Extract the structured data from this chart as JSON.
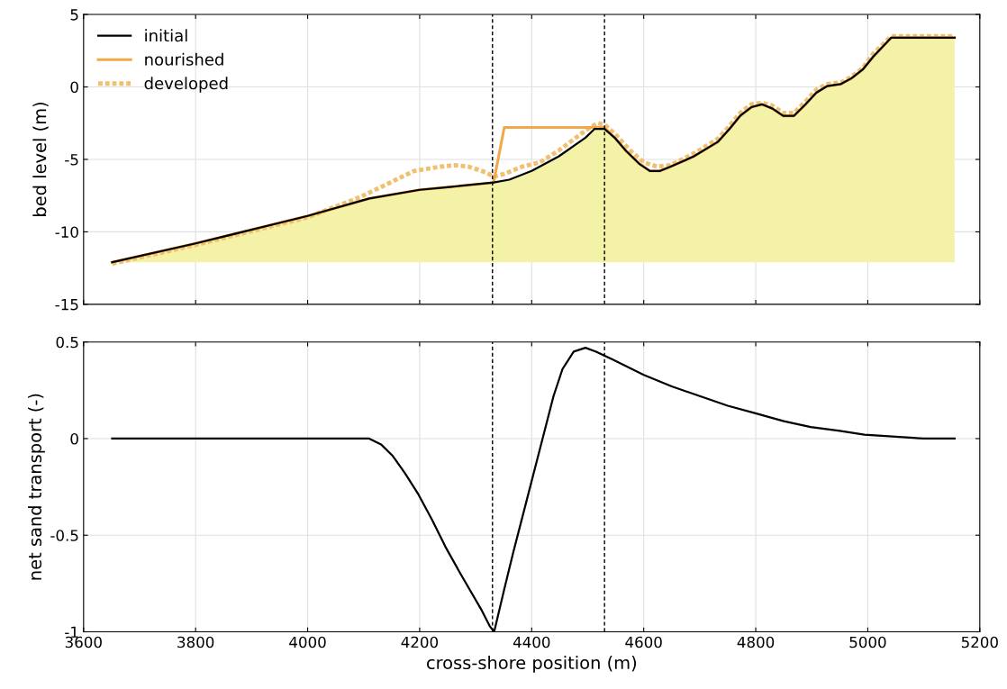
{
  "chart_data": [
    {
      "type": "line",
      "ylabel": "bed level (m)",
      "xlim": [
        3600,
        5200
      ],
      "xticks": [
        3600,
        3800,
        4000,
        4200,
        4400,
        4600,
        4800,
        5000,
        5200
      ],
      "ylim": [
        -15,
        5
      ],
      "yticks": [
        -15,
        -10,
        -5,
        0,
        5
      ],
      "grid": true,
      "legend": "top left",
      "tick_labels": "y",
      "series": [
        {
          "name": "developed",
          "color": "#f0c070",
          "line_style": "dotted",
          "x": [
            3651,
            3800,
            4000,
            4094,
            4142,
            4190,
            4238,
            4262,
            4287,
            4319,
            4332,
            4351,
            4383,
            4415,
            4448,
            4479,
            4504,
            4518,
            4530,
            4550,
            4576,
            4600,
            4624,
            4648,
            4689,
            4732,
            4753,
            4772,
            4792,
            4811,
            4830,
            4849,
            4868,
            4889,
            4908,
            4927,
            4952,
            4971,
            4991,
            5010,
            5042,
            5155
          ],
          "values": [
            -12.2,
            -10.9,
            -9.0,
            -7.6,
            -6.7,
            -5.8,
            -5.5,
            -5.4,
            -5.5,
            -5.9,
            -6.2,
            -6.0,
            -5.5,
            -5.2,
            -4.4,
            -3.5,
            -2.8,
            -2.5,
            -2.6,
            -3.3,
            -4.4,
            -5.2,
            -5.5,
            -5.4,
            -4.6,
            -3.6,
            -2.7,
            -1.8,
            -1.2,
            -1.1,
            -1.3,
            -1.8,
            -1.8,
            -1.0,
            -0.2,
            0.2,
            0.3,
            0.7,
            1.3,
            2.3,
            3.5,
            3.5
          ]
        },
        {
          "name": "nourished",
          "color": "#f0a848",
          "line_style": "solid",
          "x": [
            3651,
            3800,
            4000,
            4110,
            4200,
            4254,
            4332,
            4351,
            4530,
            4548,
            4568,
            4592,
            4611,
            4629,
            4648,
            4689,
            4732,
            4753,
            4772,
            4792,
            4811,
            4830,
            4849,
            4868,
            4889,
            4908,
            4927,
            4952,
            4971,
            4991,
            5010,
            5042,
            5155
          ],
          "values": [
            -12.1,
            -10.8,
            -8.9,
            -7.7,
            -7.1,
            -6.9,
            -6.6,
            -2.8,
            -2.8,
            -3.5,
            -4.4,
            -5.3,
            -5.8,
            -5.8,
            -5.5,
            -4.8,
            -3.8,
            -2.9,
            -2.0,
            -1.4,
            -1.2,
            -1.5,
            -2.0,
            -2.0,
            -1.2,
            -0.4,
            0.05,
            0.2,
            0.6,
            1.2,
            2.1,
            3.4,
            3.4
          ]
        },
        {
          "name": "initial",
          "color": "#000000",
          "line_style": "solid",
          "x": [
            3651,
            3800,
            4000,
            4110,
            4200,
            4254,
            4332,
            4360,
            4400,
            4448,
            4496,
            4512,
            4530,
            4548,
            4568,
            4592,
            4611,
            4629,
            4648,
            4689,
            4732,
            4753,
            4772,
            4792,
            4811,
            4830,
            4849,
            4868,
            4889,
            4908,
            4927,
            4952,
            4971,
            4991,
            5010,
            5042,
            5155
          ],
          "values": [
            -12.1,
            -10.8,
            -8.9,
            -7.7,
            -7.1,
            -6.9,
            -6.6,
            -6.4,
            -5.8,
            -4.8,
            -3.5,
            -2.9,
            -2.9,
            -3.5,
            -4.4,
            -5.3,
            -5.8,
            -5.8,
            -5.5,
            -4.8,
            -3.8,
            -2.9,
            -2.0,
            -1.4,
            -1.2,
            -1.5,
            -2.0,
            -2.0,
            -1.2,
            -0.4,
            0.05,
            0.2,
            0.6,
            1.2,
            2.1,
            3.4,
            3.4
          ]
        }
      ],
      "ref_lines": [
        {
          "axis": "x",
          "value": 4330,
          "color": "#000000",
          "line_style": "dashed"
        },
        {
          "axis": "x",
          "value": 4530,
          "color": "#000000",
          "line_style": "dashed"
        }
      ]
    },
    {
      "type": "line",
      "xlabel": "cross-shore position (m)",
      "ylabel": "net sand transport (-)",
      "xlim": [
        3600,
        5200
      ],
      "xticks": [
        3600,
        3800,
        4000,
        4200,
        4400,
        4600,
        4800,
        5000,
        5200
      ],
      "ylim": [
        -1,
        0.5
      ],
      "yticks": [
        -1,
        -0.5,
        0,
        0.5
      ],
      "grid": true,
      "series": [
        {
          "color": "#000000",
          "line_style": "solid",
          "x": [
            3651,
            4110,
            4131,
            4152,
            4174,
            4198,
            4222,
            4246,
            4271,
            4295,
            4311,
            4325,
            4333,
            4351,
            4367,
            4391,
            4415,
            4439,
            4455,
            4475,
            4496,
            4515,
            4544,
            4600,
            4650,
            4700,
            4750,
            4801,
            4850,
            4898,
            4950,
            4994,
            5050,
            5100,
            5155
          ],
          "values": [
            0,
            0,
            -0.03,
            -0.09,
            -0.18,
            -0.29,
            -0.42,
            -0.56,
            -0.69,
            -0.81,
            -0.89,
            -0.97,
            -1.0,
            -0.78,
            -0.59,
            -0.32,
            -0.05,
            0.22,
            0.36,
            0.45,
            0.47,
            0.45,
            0.41,
            0.33,
            0.27,
            0.22,
            0.17,
            0.13,
            0.09,
            0.06,
            0.04,
            0.02,
            0.01,
            0.0,
            0
          ]
        }
      ],
      "ref_lines": [
        {
          "axis": "x",
          "value": 4330,
          "color": "#000000",
          "line_style": "dashed"
        },
        {
          "axis": "x",
          "value": 4530,
          "color": "#000000",
          "line_style": "dashed"
        }
      ]
    }
  ]
}
